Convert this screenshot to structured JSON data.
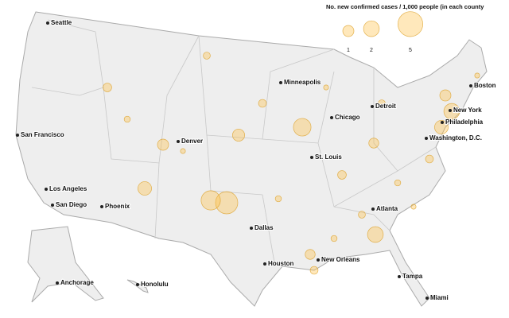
{
  "legend": {
    "title": "No. new confirmed cases / 1,000 people (in each county",
    "sizes": [
      1,
      2,
      5
    ]
  },
  "cities": [
    "Seattle",
    "San Francisco",
    "Los Angeles",
    "San Diego",
    "Phoenix",
    "Denver",
    "Minneapolis",
    "Chicago",
    "Detroit",
    "St. Louis",
    "Dallas",
    "Houston",
    "New Orleans",
    "Atlanta",
    "Tampa",
    "Miami",
    "Washington, D.C.",
    "Philadelphia",
    "New York",
    "Boston",
    "Anchorage",
    "Honolulu"
  ],
  "county_bubbles": [
    4,
    3,
    2.5,
    2,
    2,
    1.5,
    1.5,
    1.2,
    1,
    1,
    0.8,
    0.8,
    0.6,
    0.6,
    0.5,
    0.5,
    0.5,
    0.4,
    0.4,
    0.4,
    0.3,
    0.3,
    0.3,
    0.3,
    0.2,
    0.2,
    0.2,
    0.2
  ]
}
